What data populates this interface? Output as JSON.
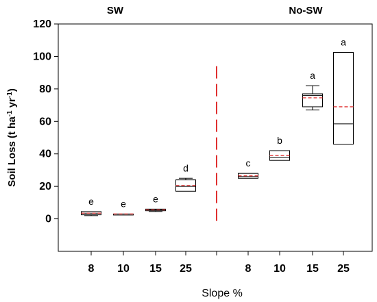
{
  "chart_data": {
    "type": "box",
    "ylabel": {
      "main": "Soil Loss (t ha",
      "sup1": "-1",
      "mid": " yr",
      "sup2": "-1",
      "end": ")"
    },
    "xlabel": "Slope %",
    "ylim": [
      -20,
      120
    ],
    "yticks": [
      0,
      20,
      40,
      60,
      80,
      100,
      120
    ],
    "grid": false,
    "groups": [
      {
        "name": "SW",
        "categories": [
          "8",
          "10",
          "15",
          "25"
        ]
      },
      {
        "name": "No-SW",
        "categories": [
          "8",
          "10",
          "15",
          "25"
        ]
      }
    ],
    "boxes": [
      {
        "group": "SW",
        "category": "8",
        "whisker_low": 2,
        "q1": 2.5,
        "median": 3.5,
        "mean": 3.5,
        "q3": 4.5,
        "whisker_high": 4.5,
        "letter": "e"
      },
      {
        "group": "SW",
        "category": "10",
        "whisker_low": 3,
        "q1": 3,
        "median": 3,
        "mean": 3,
        "q3": 3,
        "whisker_high": 3,
        "letter": "e"
      },
      {
        "group": "SW",
        "category": "15",
        "whisker_low": 4.5,
        "q1": 5,
        "median": 5.5,
        "mean": 5.5,
        "q3": 6,
        "whisker_high": 6,
        "letter": "e"
      },
      {
        "group": "SW",
        "category": "25",
        "whisker_low": 17,
        "q1": 17,
        "median": 20,
        "mean": 20.5,
        "q3": 24,
        "whisker_high": 25,
        "letter": "d"
      },
      {
        "group": "No-SW",
        "category": "8",
        "whisker_low": 25,
        "q1": 25,
        "median": 26,
        "mean": 26.5,
        "q3": 28,
        "whisker_high": 28,
        "letter": "c"
      },
      {
        "group": "No-SW",
        "category": "10",
        "whisker_low": 36,
        "q1": 36,
        "median": 38,
        "mean": 39,
        "q3": 42,
        "whisker_high": 42,
        "letter": "b"
      },
      {
        "group": "No-SW",
        "category": "15",
        "whisker_low": 67,
        "q1": 69,
        "median": 76,
        "mean": 74.5,
        "q3": 77,
        "whisker_high": 82,
        "letter": "a"
      },
      {
        "group": "No-SW",
        "category": "25",
        "whisker_low": 46,
        "q1": 46,
        "median": 58.5,
        "mean": 69,
        "q3": 102.5,
        "whisker_high": 102.5,
        "letter": "a"
      }
    ],
    "colors": {
      "box": "#000000",
      "mean": "#e03030",
      "divider": "#e03030"
    }
  }
}
